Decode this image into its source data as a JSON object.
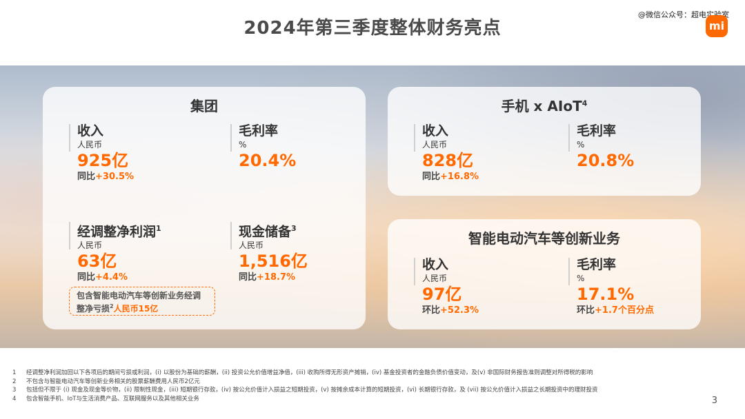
{
  "slide": {
    "title": "2024年第三季度整体财务亮点",
    "watermark": "@微信公众号：超电实验室",
    "logo_text": "mi",
    "page_number": "3",
    "accent_color": "#ff6900"
  },
  "group": {
    "title": "集团",
    "revenue": {
      "label": "收入",
      "unit": "人民币",
      "value": "925亿",
      "change_prefix": "同比",
      "change": "+30.5%"
    },
    "gross_margin": {
      "label": "毛利率",
      "unit": "%",
      "value": "20.4%"
    },
    "adjusted_net_profit": {
      "label": "经调整净利润",
      "sup": "1",
      "unit": "人民币",
      "value": "63亿",
      "change_prefix": "同比",
      "change": "+4.4%"
    },
    "cash_reserve": {
      "label": "现金储备",
      "sup": "3",
      "unit": "人民币",
      "value": "1,516亿",
      "change_prefix": "同比",
      "change": "+18.7%"
    },
    "note": {
      "text1": "包含智能电动汽车等创新业务经调整净亏损",
      "sup": "2",
      "highlight": "人民币15亿"
    }
  },
  "phone_aiot": {
    "title": "手机 x AIoT",
    "title_sup": "4",
    "revenue": {
      "label": "收入",
      "unit": "人民币",
      "value": "828亿",
      "change_prefix": "同比",
      "change": "+16.8%"
    },
    "gross_margin": {
      "label": "毛利率",
      "unit": "%",
      "value": "20.8%"
    }
  },
  "ev": {
    "title": "智能电动汽车等创新业务",
    "revenue": {
      "label": "收入",
      "unit": "人民币",
      "value": "97亿",
      "change_prefix": "环比",
      "change": "+52.3%"
    },
    "gross_margin": {
      "label": "毛利率",
      "unit": "%",
      "value": "17.1%",
      "change_prefix": "环比",
      "change": "+1.7个百分点"
    }
  },
  "footnotes": [
    {
      "num": "1",
      "text": "经调整净利润加回以下各项后的期间亏损或利润，(i) 以股份为基础的薪酬，(ii) 投资公允价值增益净值，(iii) 收购所得无形资产摊销，(iv) 基金投资者的金融负债价值变动，及(v) 非国际财务报告准则调整对所得税的影响"
    },
    {
      "num": "2",
      "text": "不包含与智能电动汽车等创新业务相关的股票薪酬费用人民币2亿元"
    },
    {
      "num": "3",
      "text": "包括但不限于 (i) 现金及现金等价物，(ii) 限制性现金，(iii) 短期银行存款，(iv) 按公允价值计入损益之短期投资，(v) 按摊余成本计算的短期投资，(vi) 长期银行存款，及 (vii) 按公允价值计入损益之长期投资中的理财投资"
    },
    {
      "num": "4",
      "text": "包含智能手机、IoT与生活消费产品、互联网服务以及其他相关业务"
    }
  ]
}
